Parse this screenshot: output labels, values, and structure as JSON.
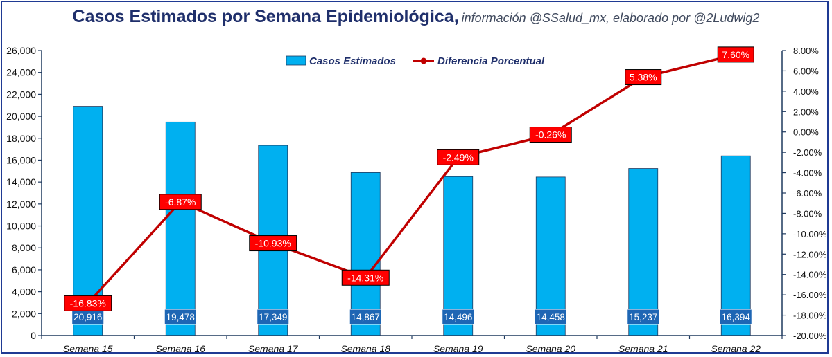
{
  "chart_data": {
    "type": "bar",
    "title": "Casos Estimados por Semana Epidemiológica,",
    "subtitle": "información @SSalud_mx, elaborado por @2Ludwig2",
    "categories": [
      "Semana 15",
      "Semana 16",
      "Semana 17",
      "Semana 18",
      "Semana 19",
      "Semana 20",
      "Semana 21",
      "Semana 22"
    ],
    "series": [
      {
        "name": "Casos Estimados",
        "type": "bar",
        "axis": "left",
        "color": "#00b0f0",
        "values": [
          20916,
          19478,
          17349,
          14867,
          14496,
          14458,
          15237,
          16394
        ],
        "labels": [
          "20,916",
          "19,478",
          "17,349",
          "14,867",
          "14,496",
          "14,458",
          "15,237",
          "16,394"
        ]
      },
      {
        "name": "Diferencia Porcentual",
        "type": "line",
        "axis": "right",
        "color": "#c00000",
        "values": [
          -16.83,
          -6.87,
          -10.93,
          -14.31,
          -2.49,
          -0.26,
          5.38,
          7.6
        ],
        "labels": [
          "-16.83%",
          "-6.87%",
          "-10.93%",
          "-14.31%",
          "-2.49%",
          "-0.26%",
          "5.38%",
          "7.60%"
        ]
      }
    ],
    "y_left": {
      "min": 0,
      "max": 26000,
      "ticks": [
        "0",
        "2,000",
        "4,000",
        "6,000",
        "8,000",
        "10,000",
        "12,000",
        "14,000",
        "16,000",
        "18,000",
        "20,000",
        "22,000",
        "24,000",
        "26,000"
      ]
    },
    "y_right": {
      "min": -20,
      "max": 8,
      "ticks": [
        "-20.00%",
        "-18.00%",
        "-16.00%",
        "-14.00%",
        "-12.00%",
        "-10.00%",
        "-8.00%",
        "-6.00%",
        "-4.00%",
        "-2.00%",
        "0.00%",
        "2.00%",
        "4.00%",
        "6.00%",
        "8.00%"
      ]
    },
    "legend_position": "top",
    "grid": false
  }
}
